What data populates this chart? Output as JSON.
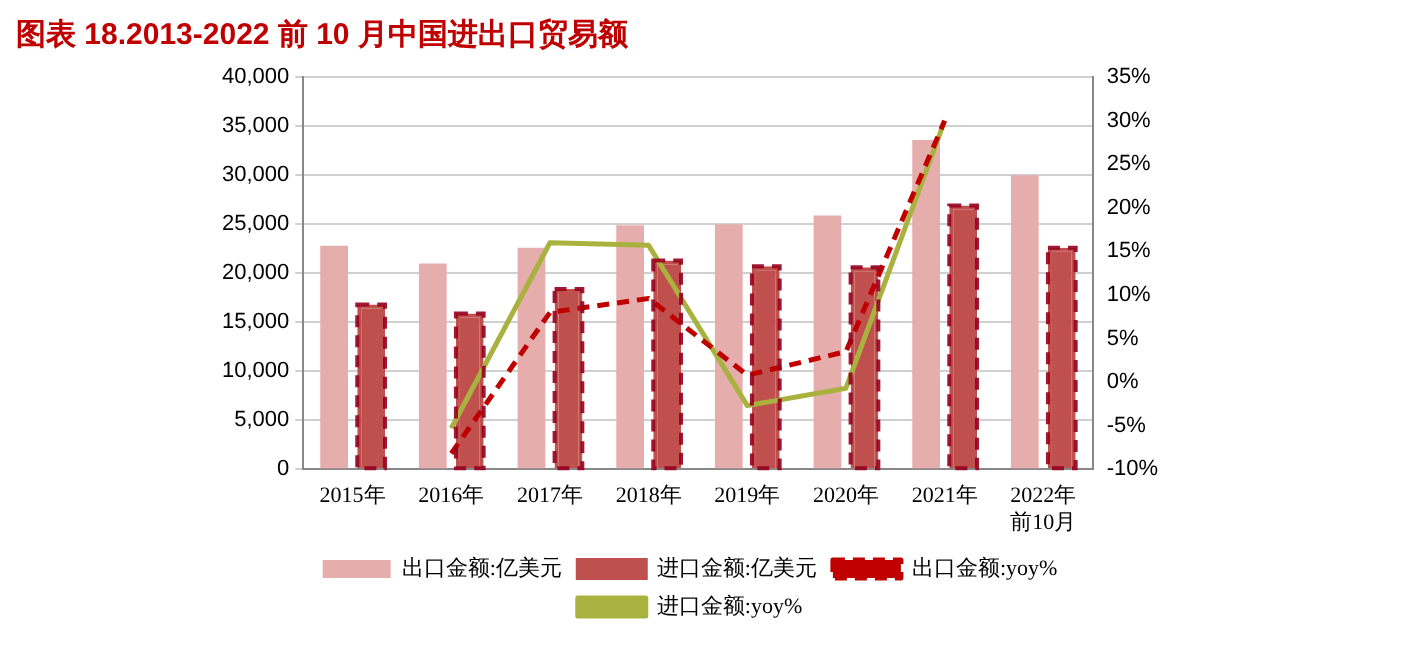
{
  "chart_data": {
    "type": "bar",
    "title": "图表 18.2013-2022 前 10 月中国进出口贸易额",
    "categories": [
      "2015年",
      "2016年",
      "2017年",
      "2018年",
      "2019年",
      "2020年",
      "2021年",
      "2022年前10月"
    ],
    "series": [
      {
        "name": "出口金额:亿美元",
        "color": "#e6adad",
        "values": [
          22800,
          21000,
          22600,
          24900,
          25000,
          25900,
          33600,
          30000
        ]
      },
      {
        "name": "进口金额:亿美元",
        "color": "#c0504d",
        "line_style": "dashed",
        "values": [
          16800,
          15900,
          18400,
          21300,
          20700,
          20600,
          26900,
          22600
        ]
      },
      {
        "name": "出口金额:yoy%",
        "type": "line",
        "axis": "y2",
        "color": "#c00000",
        "line_style": "dashed",
        "values": [
          null,
          -8.2,
          8,
          9.6,
          0.8,
          3.5,
          30,
          null
        ]
      },
      {
        "name": "进口金额:yoy%",
        "type": "line",
        "axis": "y2",
        "color": "#a9b23f",
        "line_style": "solid",
        "values": [
          null,
          -5.3,
          16,
          15.7,
          -2.7,
          -0.7,
          30,
          null
        ]
      }
    ],
    "ylim": [
      0,
      40000
    ],
    "yticks": [
      0,
      {
        "value": 5000,
        "label": "5,000"
      },
      {
        "value": 10000,
        "label": "10,000"
      },
      {
        "value": 15000,
        "label": "15,000"
      },
      {
        "value": 20000,
        "label": "20,000"
      },
      {
        "value": 25000,
        "label": "25,000"
      },
      {
        "value": 30000,
        "label": "30,000"
      },
      {
        "value": 35000,
        "label": "35,000"
      },
      {
        "value": 40000,
        "label": "40,000"
      }
    ],
    "y2lim": [
      -10,
      35
    ],
    "y2ticks": [
      {
        "value": -10,
        "label": "-10%"
      },
      {
        "value": -5,
        "label": "-5%"
      },
      {
        "value": 0,
        "label": "0%"
      },
      {
        "value": 5,
        "label": "5%"
      },
      {
        "value": 10,
        "label": "10%"
      },
      {
        "value": 15,
        "label": "15%"
      },
      {
        "value": 20,
        "label": "20%"
      },
      {
        "value": 25,
        "label": "25%"
      },
      {
        "value": 30,
        "label": "30%"
      },
      {
        "value": 35,
        "label": "35%"
      }
    ],
    "grid": "y",
    "legend": "bottom",
    "marker": "none"
  }
}
